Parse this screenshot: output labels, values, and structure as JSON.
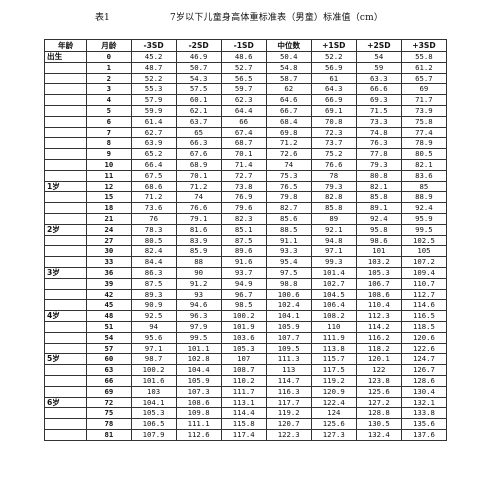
{
  "caption": {
    "label": "表1",
    "title": "7岁以下儿童身高体重标准表（男童）标准值（cm）"
  },
  "table": {
    "headers": [
      "年龄",
      "月龄",
      "-3SD",
      "-2SD",
      "-1SD",
      "中位数",
      "+1SD",
      "+2SD",
      "+3SD"
    ],
    "rows": [
      {
        "age": "出生",
        "month": "0",
        "values": [
          "45.2",
          "46.9",
          "48.6",
          "50.4",
          "52.2",
          "54",
          "55.8"
        ]
      },
      {
        "age": "",
        "month": "1",
        "values": [
          "48.7",
          "50.7",
          "52.7",
          "54.8",
          "56.9",
          "59",
          "61.2"
        ]
      },
      {
        "age": "",
        "month": "2",
        "values": [
          "52.2",
          "54.3",
          "56.5",
          "58.7",
          "61",
          "63.3",
          "65.7"
        ]
      },
      {
        "age": "",
        "month": "3",
        "values": [
          "55.3",
          "57.5",
          "59.7",
          "62",
          "64.3",
          "66.6",
          "69"
        ]
      },
      {
        "age": "",
        "month": "4",
        "values": [
          "57.9",
          "60.1",
          "62.3",
          "64.6",
          "66.9",
          "69.3",
          "71.7"
        ]
      },
      {
        "age": "",
        "month": "5",
        "values": [
          "59.9",
          "62.1",
          "64.4",
          "66.7",
          "69.1",
          "71.5",
          "73.9"
        ]
      },
      {
        "age": "",
        "month": "6",
        "values": [
          "61.4",
          "63.7",
          "66",
          "68.4",
          "70.8",
          "73.3",
          "75.8"
        ]
      },
      {
        "age": "",
        "month": "7",
        "values": [
          "62.7",
          "65",
          "67.4",
          "69.8",
          "72.3",
          "74.8",
          "77.4"
        ]
      },
      {
        "age": "",
        "month": "8",
        "values": [
          "63.9",
          "66.3",
          "68.7",
          "71.2",
          "73.7",
          "76.3",
          "78.9"
        ]
      },
      {
        "age": "",
        "month": "9",
        "values": [
          "65.2",
          "67.6",
          "70.1",
          "72.6",
          "75.2",
          "77.8",
          "80.5"
        ]
      },
      {
        "age": "",
        "month": "10",
        "values": [
          "66.4",
          "68.9",
          "71.4",
          "74",
          "76.6",
          "79.3",
          "82.1"
        ]
      },
      {
        "age": "",
        "month": "11",
        "values": [
          "67.5",
          "70.1",
          "72.7",
          "75.3",
          "78",
          "80.8",
          "83.6"
        ]
      },
      {
        "age": "1岁",
        "month": "12",
        "values": [
          "68.6",
          "71.2",
          "73.8",
          "76.5",
          "79.3",
          "82.1",
          "85"
        ]
      },
      {
        "age": "",
        "month": "15",
        "values": [
          "71.2",
          "74",
          "76.9",
          "79.8",
          "82.8",
          "85.8",
          "88.9"
        ]
      },
      {
        "age": "",
        "month": "18",
        "values": [
          "73.6",
          "76.6",
          "79.6",
          "82.7",
          "85.8",
          "89.1",
          "92.4"
        ]
      },
      {
        "age": "",
        "month": "21",
        "values": [
          "76",
          "79.1",
          "82.3",
          "85.6",
          "89",
          "92.4",
          "95.9"
        ]
      },
      {
        "age": "2岁",
        "month": "24",
        "values": [
          "78.3",
          "81.6",
          "85.1",
          "88.5",
          "92.1",
          "95.8",
          "99.5"
        ]
      },
      {
        "age": "",
        "month": "27",
        "values": [
          "80.5",
          "83.9",
          "87.5",
          "91.1",
          "94.8",
          "98.6",
          "102.5"
        ]
      },
      {
        "age": "",
        "month": "30",
        "values": [
          "82.4",
          "85.9",
          "89.6",
          "93.3",
          "97.1",
          "101",
          "105"
        ]
      },
      {
        "age": "",
        "month": "33",
        "values": [
          "84.4",
          "88",
          "91.6",
          "95.4",
          "99.3",
          "103.2",
          "107.2"
        ]
      },
      {
        "age": "3岁",
        "month": "36",
        "values": [
          "86.3",
          "90",
          "93.7",
          "97.5",
          "101.4",
          "105.3",
          "109.4"
        ]
      },
      {
        "age": "",
        "month": "39",
        "values": [
          "87.5",
          "91.2",
          "94.9",
          "98.8",
          "102.7",
          "106.7",
          "110.7"
        ]
      },
      {
        "age": "",
        "month": "42",
        "values": [
          "89.3",
          "93",
          "96.7",
          "100.6",
          "104.5",
          "108.6",
          "112.7"
        ]
      },
      {
        "age": "",
        "month": "45",
        "values": [
          "90.9",
          "94.6",
          "98.5",
          "102.4",
          "106.4",
          "110.4",
          "114.6"
        ]
      },
      {
        "age": "4岁",
        "month": "48",
        "values": [
          "92.5",
          "96.3",
          "100.2",
          "104.1",
          "108.2",
          "112.3",
          "116.5"
        ]
      },
      {
        "age": "",
        "month": "51",
        "values": [
          "94",
          "97.9",
          "101.9",
          "105.9",
          "110",
          "114.2",
          "118.5"
        ]
      },
      {
        "age": "",
        "month": "54",
        "values": [
          "95.6",
          "99.5",
          "103.6",
          "107.7",
          "111.9",
          "116.2",
          "120.6"
        ]
      },
      {
        "age": "",
        "month": "57",
        "values": [
          "97.1",
          "101.1",
          "105.3",
          "109.5",
          "113.8",
          "118.2",
          "122.6"
        ]
      },
      {
        "age": "5岁",
        "month": "60",
        "values": [
          "98.7",
          "102.8",
          "107",
          "111.3",
          "115.7",
          "120.1",
          "124.7"
        ]
      },
      {
        "age": "",
        "month": "63",
        "values": [
          "100.2",
          "104.4",
          "108.7",
          "113",
          "117.5",
          "122",
          "126.7"
        ]
      },
      {
        "age": "",
        "month": "66",
        "values": [
          "101.6",
          "105.9",
          "110.2",
          "114.7",
          "119.2",
          "123.8",
          "128.6"
        ]
      },
      {
        "age": "",
        "month": "69",
        "values": [
          "103",
          "107.3",
          "111.7",
          "116.3",
          "120.9",
          "125.6",
          "130.4"
        ]
      },
      {
        "age": "6岁",
        "month": "72",
        "values": [
          "104.1",
          "108.6",
          "113.1",
          "117.7",
          "122.4",
          "127.2",
          "132.1"
        ]
      },
      {
        "age": "",
        "month": "75",
        "values": [
          "105.3",
          "109.8",
          "114.4",
          "119.2",
          "124",
          "128.8",
          "133.8"
        ]
      },
      {
        "age": "",
        "month": "78",
        "values": [
          "106.5",
          "111.1",
          "115.8",
          "120.7",
          "125.6",
          "130.5",
          "135.6"
        ]
      },
      {
        "age": "",
        "month": "81",
        "values": [
          "107.9",
          "112.6",
          "117.4",
          "122.3",
          "127.3",
          "132.4",
          "137.6"
        ]
      }
    ]
  }
}
